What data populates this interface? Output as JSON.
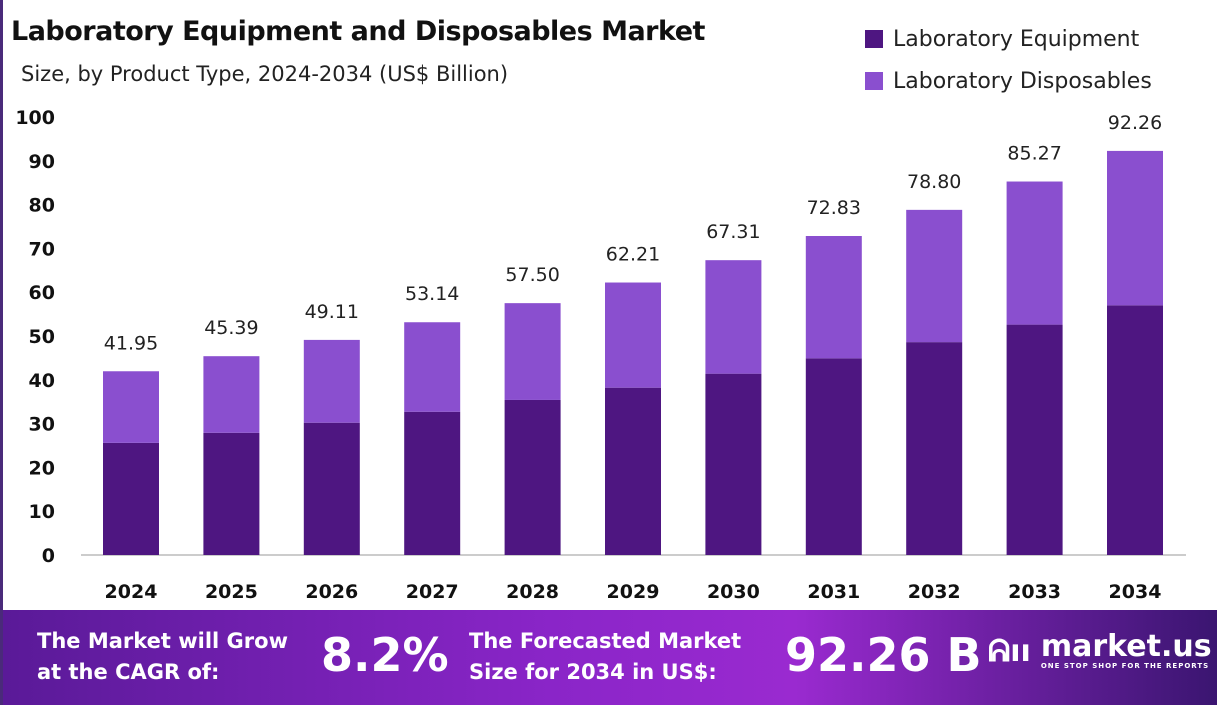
{
  "chart_data": {
    "type": "bar",
    "stacked": true,
    "title": "Laboratory Equipment and Disposables Market",
    "subtitle": "Size, by Product Type, 2024-2034 (US$ Billion)",
    "categories": [
      "2024",
      "2025",
      "2026",
      "2027",
      "2028",
      "2029",
      "2030",
      "2031",
      "2032",
      "2033",
      "2034"
    ],
    "series": [
      {
        "name": "Laboratory Equipment",
        "color": "#4e1681",
        "values": [
          25.6,
          27.9,
          30.2,
          32.7,
          35.4,
          38.2,
          41.4,
          44.9,
          48.6,
          52.6,
          57.0
        ]
      },
      {
        "name": "Laboratory Disposables",
        "color": "#8a4fcf",
        "values": [
          16.35,
          17.49,
          18.91,
          20.44,
          22.1,
          24.01,
          25.91,
          27.93,
          30.2,
          32.67,
          35.26
        ]
      }
    ],
    "totals": [
      "41.95",
      "45.39",
      "49.11",
      "53.14",
      "57.50",
      "62.21",
      "67.31",
      "72.83",
      "78.80",
      "85.27",
      "92.26"
    ],
    "ylim": [
      0,
      100
    ],
    "yticks": [
      "0",
      "10",
      "20",
      "30",
      "40",
      "50",
      "60",
      "70",
      "80",
      "90",
      "100"
    ],
    "grid": false,
    "legend_position": "top-right"
  },
  "footer": {
    "cagr_label": [
      "The Market will Grow",
      "at the CAGR of:"
    ],
    "cagr_value": "8.2%",
    "forecast_label": [
      "The Forecasted Market",
      "Size for 2034 in US$:"
    ],
    "forecast_value": "92.26 B",
    "brand": "market.us",
    "tagline": "ONE STOP SHOP FOR THE REPORTS"
  }
}
